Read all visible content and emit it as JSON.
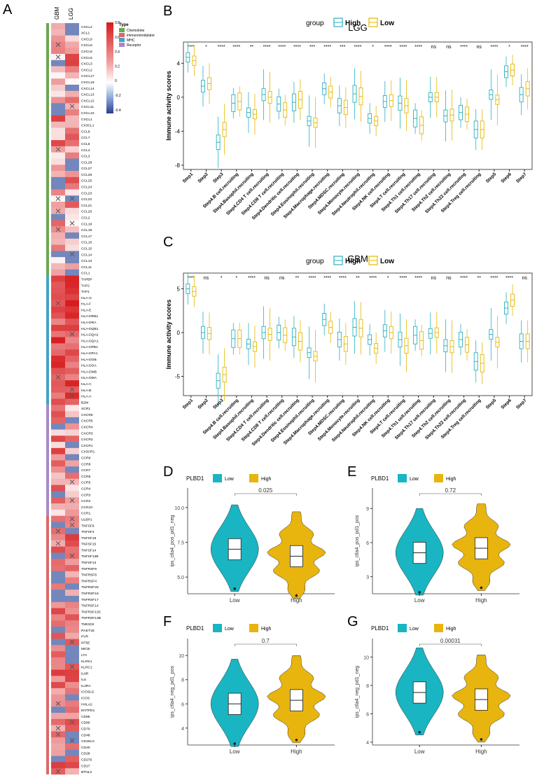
{
  "colors": {
    "high_box": "#2ab0c0",
    "low_box": "#e6b800",
    "violin_low": "#19b5c2",
    "violin_high": "#e8b40e",
    "heat_red": "#d7191c",
    "heat_blue": "#2c4a9a"
  },
  "panels": {
    "A": "A",
    "B": "B",
    "C": "C",
    "D": "D",
    "E": "E",
    "F": "F",
    "G": "G"
  },
  "heatmap": {
    "columns": [
      "GBM",
      "LGG"
    ],
    "legend": {
      "title": "Type",
      "types": [
        "Chemokine",
        "immunomodulator",
        "MHC",
        "Receptor"
      ],
      "type_colors": [
        "#6aa84f",
        "#e06666",
        "#45a2c4",
        "#a987c9"
      ],
      "ticks": [
        "0.8",
        "0.6",
        "0.4",
        "0.2",
        "0",
        "-0.2",
        "-0.4"
      ]
    },
    "genes": [
      "CXCL2",
      "XCL1",
      "CXCL9",
      "CXCL8",
      "CXCL6",
      "CXCL5",
      "CXCL3",
      "CXCL2",
      "CXCL17",
      "CXCL16",
      "CXCL14",
      "CXCL13",
      "CXCL12",
      "CXCL11",
      "CXCL10",
      "CXCL1",
      "CX3CL1",
      "CCL8",
      "CCL7",
      "CCL5",
      "CCL4",
      "CCL3",
      "CCL28",
      "CCL27",
      "CCL26",
      "CCL25",
      "CCL24",
      "CCL23",
      "CCL22",
      "CCL21",
      "CCL20",
      "CCL2",
      "CCL19",
      "CCL18",
      "CCL17",
      "CCL16",
      "CCL15",
      "CCL14",
      "CCL13",
      "CCL11",
      "CCL1",
      "TAPBP",
      "TAP2",
      "TAP1",
      "HLA-G",
      "HLA-F",
      "HLA-E",
      "HLA-DRB1",
      "HLA-DRA",
      "HLA-DQB1",
      "HLA-DQA2",
      "HLA-DQA1",
      "HLA-DPB1",
      "HLA-DPA1",
      "HLA-DOB",
      "HLA-DOA",
      "HLA-DMB",
      "HLA-DMA",
      "HLA-C",
      "HLA-B",
      "HLA-A",
      "B2M",
      "XCR1",
      "CXCR6",
      "CXCR5",
      "CXCR4",
      "CXCR3",
      "CXCR2",
      "CXCR1",
      "CX3CR1",
      "CCR9",
      "CCR8",
      "CCR7",
      "CCR6",
      "CCR5",
      "CCR4",
      "CCR3",
      "CCR2",
      "CCR10",
      "CCR1",
      "ULBP1",
      "TNFSF9",
      "TNFSF4",
      "TNFSF18",
      "TNFSF15",
      "TNFSF14",
      "TNFSF13B",
      "TNFSF13",
      "TNFRSF9",
      "TNFRSF8",
      "TNFRSF4",
      "TNFRSF25",
      "TNFRSF18",
      "TNFRSF17",
      "TNFRSF14",
      "TNFRSF13C",
      "TNFRSF13B",
      "TMIGD2",
      "RAET1E",
      "PVR",
      "NT5E",
      "MICB",
      "LTA",
      "KLRK1",
      "KLRC1",
      "IL6R",
      "IL6",
      "IL2RA",
      "ICOSLG",
      "ICOS",
      "HHLA2",
      "ENTPD1",
      "CD86",
      "CD80",
      "CD70",
      "CD48",
      "CD40LG",
      "CD40",
      "CD28",
      "CD276",
      "CD27",
      "BTNL2"
    ]
  },
  "chart_data": [
    {
      "type": "box",
      "panel": "B",
      "title": "LGG",
      "ylabel": "Immune activity scores",
      "legend_title": "group",
      "legend": [
        "High",
        "Low"
      ],
      "ylim": [
        -8.5,
        6.5
      ],
      "yticks": [
        4,
        0,
        -4,
        -8
      ],
      "categories": [
        "Step1",
        "Step2",
        "Step3",
        "Step4.B cell.recruiting",
        "Step4.Basophil.recruiting",
        "Step4.CD4 T cell.recruiting",
        "Step4.CD8 T cell.recruiting",
        "Step4.Dendritic cell.recruiting",
        "Step4.Eosinophil.recruiting",
        "Step4.Macrophage.recruiting",
        "Step4.MDSC.recruiting",
        "Step4.Monocyte.recruiting",
        "Step4.Neutrophil.recruiting",
        "Step4.NK cell.recruiting",
        "Step4.T cell.recruiting",
        "Step4.Th1 cell.recruiting",
        "Step4.Th17 cell.recruiting",
        "Step4.Th2 cell.recruiting",
        "Step4.Th22 cell.recruiting",
        "Step4.Treg cell.recruiting",
        "Step5",
        "Step6",
        "Step7"
      ],
      "significance": [
        "****",
        "*",
        "****",
        "****",
        "**",
        "****",
        "****",
        "****",
        "***",
        "****",
        "***",
        "****",
        "*",
        "****",
        "****",
        "****",
        "ns",
        "ns",
        "****",
        "ns",
        "****",
        "*",
        "****"
      ],
      "series": [
        {
          "name": "High",
          "medians": [
            4.7,
            1.3,
            -5.3,
            -0.7,
            -1.8,
            0.3,
            -0.8,
            -0.6,
            -2.8,
            1.0,
            -1.0,
            0.4,
            -2.5,
            -0.5,
            -0.7,
            -2.5,
            0.0,
            -2.2,
            -1.8,
            -3.8,
            0.3,
            3.0,
            0.3
          ]
        },
        {
          "name": "Low",
          "medians": [
            4.3,
            1.6,
            -3.8,
            -0.5,
            -2.0,
            0.0,
            -1.5,
            -0.3,
            -3.0,
            0.6,
            -1.2,
            0.1,
            -2.8,
            -0.4,
            -1.0,
            -3.3,
            0.0,
            -2.1,
            -2.0,
            -3.8,
            -0.3,
            3.2,
            1.0
          ]
        }
      ]
    },
    {
      "type": "box",
      "panel": "C",
      "title": "GBM",
      "ylabel": "Immune activity scores",
      "legend_title": "group",
      "legend": [
        "High",
        "Low"
      ],
      "ylim": [
        -7.2,
        6.8
      ],
      "yticks": [
        5,
        0,
        -5
      ],
      "categories": [
        "Step1",
        "Step2",
        "Step3",
        "Step4.B cell.recruiting",
        "Step4.Basophil.recruiting",
        "Step4.CD4 T cell.recruiting",
        "Step4.CD8 T cell.recruiting",
        "Step4.Dendritic cell.recruiting",
        "Step4.Eosinophil.recruiting",
        "Step4.Macrophage.recruiting",
        "Step4.MDSC.recruiting",
        "Step4.Monocyte.recruiting",
        "Step4.Neutrophil.recruiting",
        "Step4.NK cell.recruiting",
        "Step4.T cell.recruiting",
        "Step4.Th1 cell.recruiting",
        "Step4.Th17 cell.recruiting",
        "Step4.Th2 cell.recruiting",
        "Step4.Th22 cell.recruiting",
        "Step4.Treg cell.recruiting",
        "Step5",
        "Step6",
        "Step7"
      ],
      "significance": [
        "****",
        "ns",
        "*",
        "*",
        "****",
        "ns",
        "ns",
        "**",
        "****",
        "****",
        "****",
        "**",
        "****",
        "*",
        "****",
        "****",
        "ns",
        "ns",
        "****",
        "**",
        "****",
        "****",
        "ns"
      ],
      "series": [
        {
          "name": "High",
          "medians": [
            5.0,
            0.0,
            -5.5,
            -0.7,
            -1.3,
            0.0,
            0.0,
            -0.5,
            -2.3,
            1.5,
            -0.8,
            0.6,
            -0.8,
            0.2,
            -0.8,
            -0.3,
            -0.1,
            -1.5,
            -0.8,
            -3.3,
            -0.2,
            2.8,
            -1.0
          ]
        },
        {
          "name": "Low",
          "medians": [
            4.7,
            -0.1,
            -4.8,
            -0.7,
            -1.6,
            -0.2,
            -0.3,
            -1.0,
            -2.7,
            0.6,
            -1.3,
            0.5,
            -1.8,
            0.0,
            -1.5,
            -0.9,
            0.0,
            -1.6,
            -1.4,
            -3.5,
            -1.1,
            3.7,
            -1.0
          ]
        }
      ]
    },
    {
      "type": "violin",
      "panel": "D",
      "legend_title": "PLBD1",
      "legend": [
        "Low",
        "High"
      ],
      "ylabel": "ips_ctla4_pos_pd1_neg",
      "categories": [
        "Low",
        "High"
      ],
      "pvalue": "0.025",
      "ylim": [
        3.8,
        11.4
      ],
      "yticks": [
        "5.0",
        "7.5",
        "10.0"
      ],
      "medians": [
        7.0,
        6.5
      ]
    },
    {
      "type": "violin",
      "panel": "E",
      "legend_title": "PLBD1",
      "legend": [
        "Low",
        "High"
      ],
      "ylabel": "ips_ctla4_pos_pd1_pos",
      "categories": [
        "Low",
        "High"
      ],
      "pvalue": "0.72",
      "ylim": [
        1.5,
        10.8
      ],
      "yticks": [
        "3",
        "6",
        "9"
      ],
      "medians": [
        5.1,
        5.5
      ]
    },
    {
      "type": "violin",
      "panel": "F",
      "legend_title": "PLBD1",
      "legend": [
        "Low",
        "High"
      ],
      "ylabel": "ips_ctla4_neg_pd1_pos",
      "categories": [
        "Low",
        "High"
      ],
      "pvalue": "0.7",
      "ylim": [
        2.6,
        11.4
      ],
      "yticks": [
        "4",
        "6",
        "8",
        "10"
      ],
      "medians": [
        6.0,
        6.3
      ]
    },
    {
      "type": "violin",
      "panel": "G",
      "legend_title": "PLBD1",
      "legend": [
        "Low",
        "High"
      ],
      "ylabel": "ips_ctla4_neg_pd1_neg",
      "categories": [
        "Low",
        "High"
      ],
      "pvalue": "0.00031",
      "ylim": [
        3.8,
        11.3
      ],
      "yticks": [
        "4",
        "6",
        "8",
        "10"
      ],
      "medians": [
        7.5,
        7.0
      ]
    }
  ]
}
